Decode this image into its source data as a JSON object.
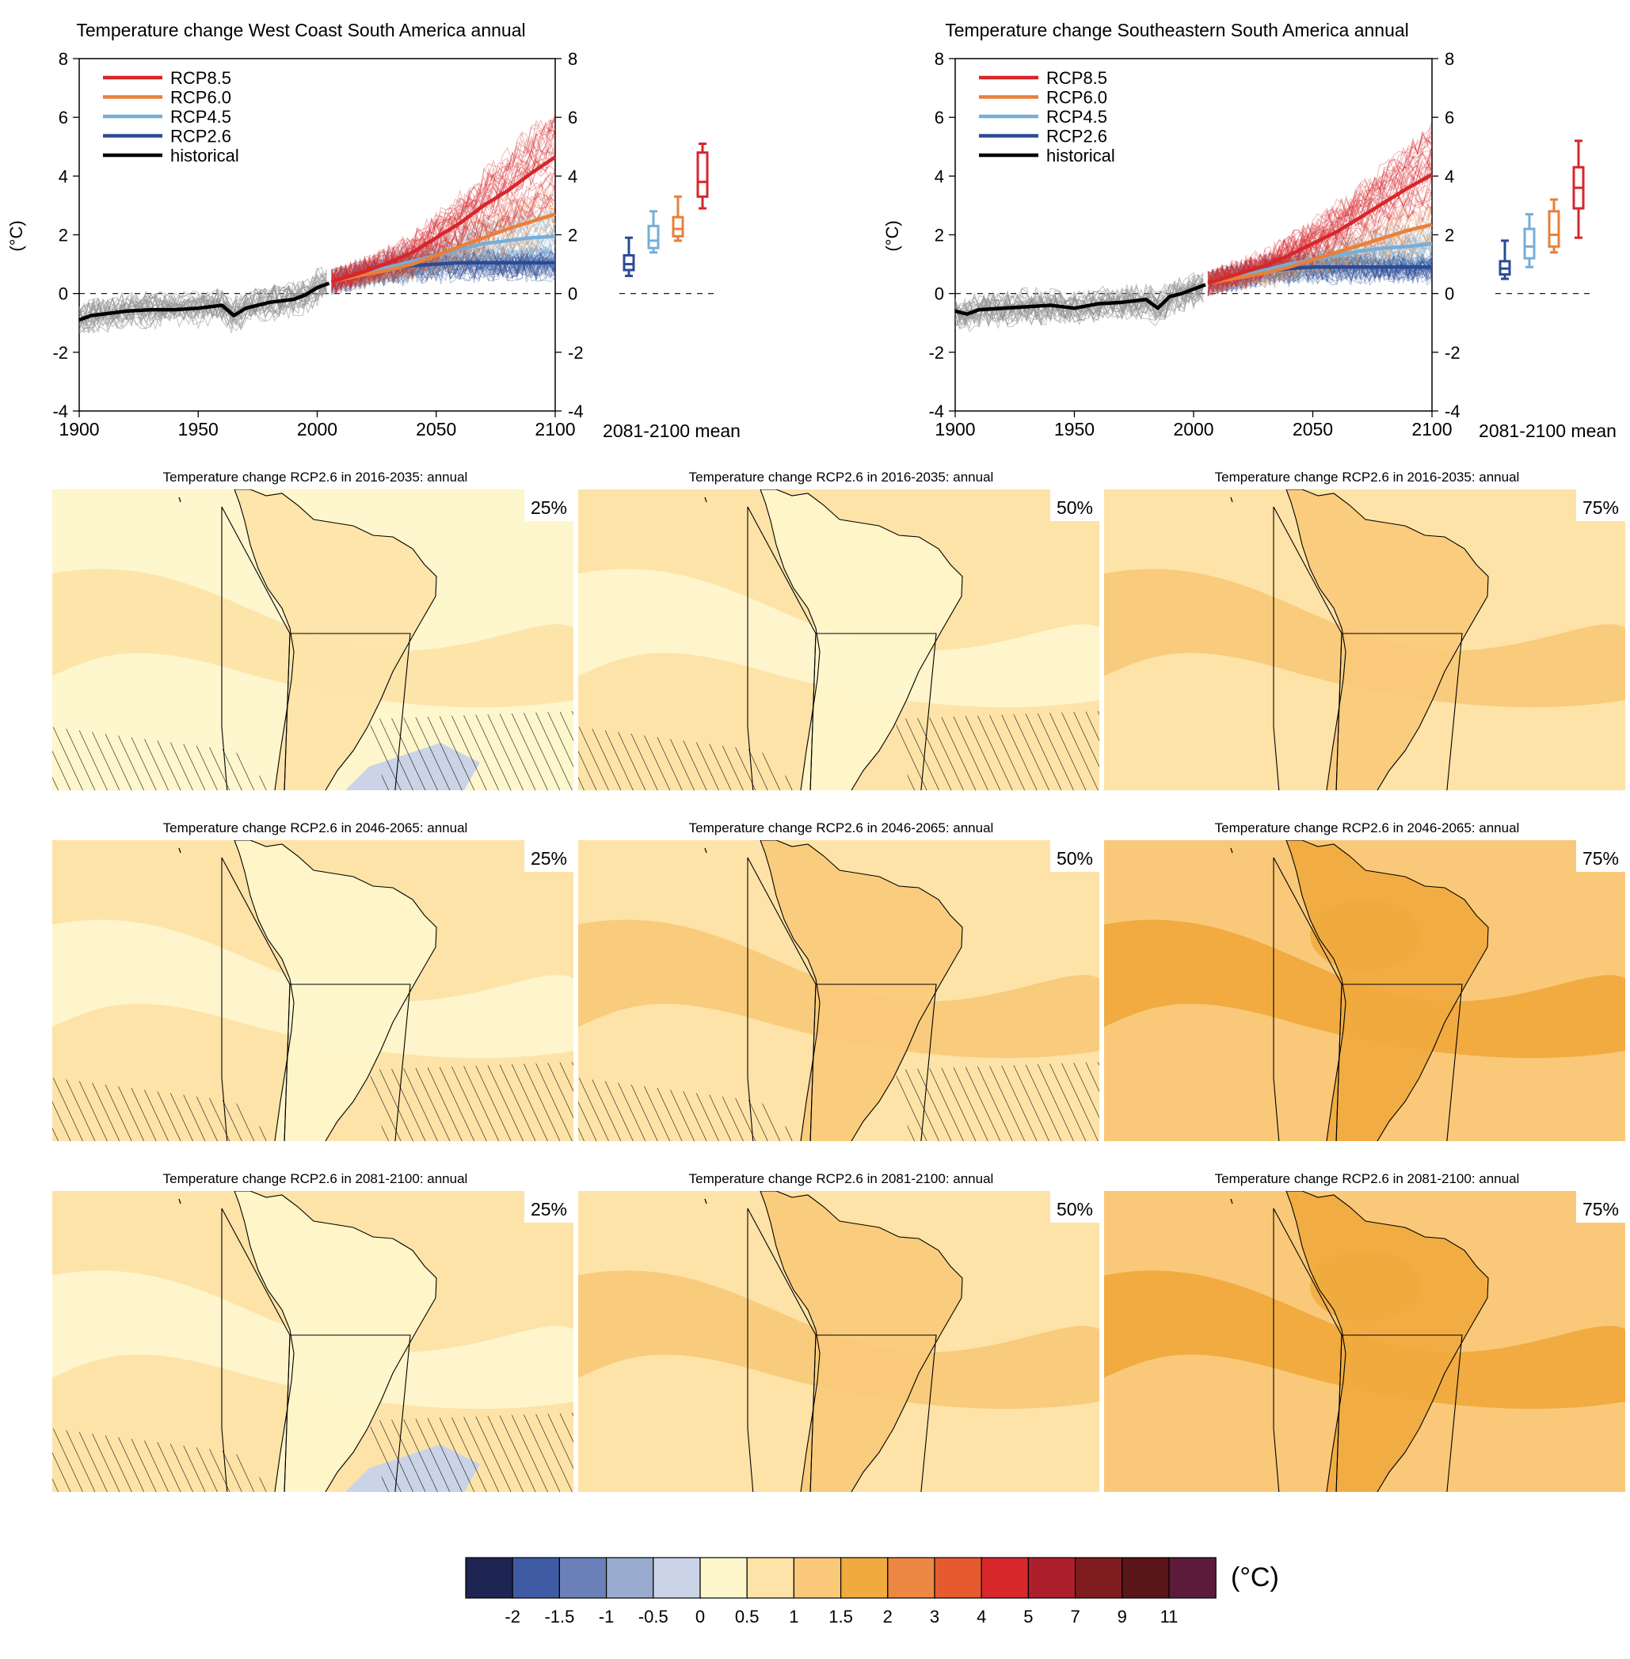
{
  "colors": {
    "rcp85": "#d7262b",
    "rcp60": "#e8803a",
    "rcp45": "#76aed8",
    "rcp26": "#2c4b95",
    "historical": "#000000",
    "ensemble_hist": "#8e8e8e"
  },
  "chart_data": [
    {
      "type": "line",
      "title": "Temperature change West Coast South America annual",
      "ylabel": "(°C)",
      "xlim": [
        1900,
        2100
      ],
      "ylim": [
        -4,
        8
      ],
      "x_ticks": [
        "1900",
        "1950",
        "2000",
        "2050",
        "2100"
      ],
      "y_ticks": [
        "8",
        "6",
        "4",
        "2",
        "0",
        "-2",
        "-4"
      ],
      "y_ticks_right": [
        "8",
        "6",
        "4",
        "2",
        "0",
        "-2",
        "-4"
      ],
      "legend": [
        "RCP8.5",
        "RCP6.0",
        "RCP4.5",
        "RCP2.6",
        "historical"
      ],
      "legend_position": "top-left",
      "series": [
        {
          "name": "historical",
          "x": [
            1900,
            1905,
            1910,
            1920,
            1930,
            1940,
            1950,
            1960,
            1965,
            1970,
            1980,
            1990,
            1995,
            2000,
            2005
          ],
          "y": [
            -0.9,
            -0.75,
            -0.7,
            -0.6,
            -0.55,
            -0.55,
            -0.5,
            -0.4,
            -0.75,
            -0.5,
            -0.3,
            -0.2,
            -0.05,
            0.2,
            0.35
          ]
        },
        {
          "name": "RCP2.6",
          "x": [
            2006,
            2020,
            2030,
            2040,
            2050,
            2060,
            2070,
            2080,
            2090,
            2100
          ],
          "y": [
            0.4,
            0.7,
            0.85,
            0.95,
            1.0,
            1.05,
            1.05,
            1.05,
            1.05,
            1.05
          ]
        },
        {
          "name": "RCP4.5",
          "x": [
            2006,
            2020,
            2030,
            2040,
            2050,
            2060,
            2070,
            2080,
            2090,
            2100
          ],
          "y": [
            0.4,
            0.7,
            0.9,
            1.1,
            1.3,
            1.5,
            1.7,
            1.8,
            1.9,
            1.95
          ]
        },
        {
          "name": "RCP6.0",
          "x": [
            2006,
            2020,
            2030,
            2040,
            2050,
            2060,
            2070,
            2080,
            2090,
            2100
          ],
          "y": [
            0.4,
            0.65,
            0.8,
            1.0,
            1.3,
            1.6,
            1.9,
            2.2,
            2.45,
            2.7
          ]
        },
        {
          "name": "RCP8.5",
          "x": [
            2006,
            2020,
            2030,
            2040,
            2050,
            2060,
            2070,
            2080,
            2090,
            2100
          ],
          "y": [
            0.4,
            0.75,
            1.05,
            1.4,
            1.9,
            2.4,
            3.0,
            3.5,
            4.1,
            4.65
          ]
        }
      ],
      "box_axis_label": "2081-2100 mean",
      "box_zero_line": "0",
      "boxes": [
        {
          "name": "RCP2.6",
          "min": 0.6,
          "q1": 0.8,
          "median": 1.0,
          "q3": 1.3,
          "max": 1.9
        },
        {
          "name": "RCP4.5",
          "min": 1.4,
          "q1": 1.55,
          "median": 1.8,
          "q3": 2.3,
          "max": 2.8
        },
        {
          "name": "RCP6.0",
          "min": 1.8,
          "q1": 1.95,
          "median": 2.2,
          "q3": 2.6,
          "max": 3.3
        },
        {
          "name": "RCP8.5",
          "min": 2.9,
          "q1": 3.3,
          "median": 3.8,
          "q3": 4.8,
          "max": 5.1
        }
      ]
    },
    {
      "type": "line",
      "title": "Temperature change Southeastern South America annual",
      "ylabel": "(°C)",
      "xlim": [
        1900,
        2100
      ],
      "ylim": [
        -4,
        8
      ],
      "x_ticks": [
        "1900",
        "1950",
        "2000",
        "2050",
        "2100"
      ],
      "y_ticks": [
        "8",
        "6",
        "4",
        "2",
        "0",
        "-2",
        "-4"
      ],
      "y_ticks_right": [
        "8",
        "6",
        "4",
        "2",
        "0",
        "-2",
        "-4"
      ],
      "legend": [
        "RCP8.5",
        "RCP6.0",
        "RCP4.5",
        "RCP2.6",
        "historical"
      ],
      "legend_position": "top-left",
      "series": [
        {
          "name": "historical",
          "x": [
            1900,
            1905,
            1910,
            1920,
            1930,
            1940,
            1950,
            1960,
            1970,
            1980,
            1985,
            1990,
            1995,
            2000,
            2005
          ],
          "y": [
            -0.6,
            -0.7,
            -0.55,
            -0.5,
            -0.45,
            -0.4,
            -0.5,
            -0.35,
            -0.3,
            -0.2,
            -0.5,
            -0.1,
            0.0,
            0.15,
            0.3
          ]
        },
        {
          "name": "RCP2.6",
          "x": [
            2006,
            2020,
            2030,
            2040,
            2050,
            2060,
            2070,
            2080,
            2090,
            2100
          ],
          "y": [
            0.35,
            0.6,
            0.75,
            0.85,
            0.9,
            0.9,
            0.9,
            0.9,
            0.9,
            0.9
          ]
        },
        {
          "name": "RCP4.5",
          "x": [
            2006,
            2020,
            2030,
            2040,
            2050,
            2060,
            2070,
            2080,
            2090,
            2100
          ],
          "y": [
            0.35,
            0.6,
            0.8,
            1.0,
            1.15,
            1.3,
            1.45,
            1.55,
            1.6,
            1.7
          ]
        },
        {
          "name": "RCP6.0",
          "x": [
            2006,
            2020,
            2030,
            2040,
            2050,
            2060,
            2070,
            2080,
            2090,
            2100
          ],
          "y": [
            0.35,
            0.55,
            0.7,
            0.9,
            1.15,
            1.4,
            1.65,
            1.9,
            2.15,
            2.35
          ]
        },
        {
          "name": "RCP8.5",
          "x": [
            2006,
            2020,
            2030,
            2040,
            2050,
            2060,
            2070,
            2080,
            2090,
            2100
          ],
          "y": [
            0.35,
            0.7,
            0.95,
            1.3,
            1.7,
            2.1,
            2.6,
            3.1,
            3.6,
            4.05
          ]
        }
      ],
      "box_axis_label": "2081-2100 mean",
      "box_zero_line": "0",
      "boxes": [
        {
          "name": "RCP2.6",
          "min": 0.5,
          "q1": 0.65,
          "median": 0.85,
          "q3": 1.1,
          "max": 1.8
        },
        {
          "name": "RCP4.5",
          "min": 0.9,
          "q1": 1.2,
          "median": 1.6,
          "q3": 2.2,
          "max": 2.7
        },
        {
          "name": "RCP6.0",
          "min": 1.4,
          "q1": 1.6,
          "median": 2.0,
          "q3": 2.8,
          "max": 3.2
        },
        {
          "name": "RCP8.5",
          "min": 1.9,
          "q1": 2.9,
          "median": 3.6,
          "q3": 4.3,
          "max": 5.2
        }
      ]
    },
    {
      "type": "heatmap",
      "title": "Temperature change RCP2.6 in 2016-2035: annual",
      "panels": [
        {
          "percentile": "25%",
          "dominant_class": "0 to 0.5",
          "secondary_class": "0.5 to 1",
          "hatched": true,
          "negative_area": true
        },
        {
          "percentile": "50%",
          "dominant_class": "0.5 to 1",
          "secondary_class": "0 to 0.5",
          "hatched": true,
          "negative_area": false
        },
        {
          "percentile": "75%",
          "dominant_class": "0.5 to 1",
          "secondary_class": "1 to 1.5",
          "hatched": false,
          "negative_area": false
        }
      ]
    },
    {
      "type": "heatmap",
      "title": "Temperature change RCP2.6 in 2046-2065: annual",
      "panels": [
        {
          "percentile": "25%",
          "dominant_class": "0.5 to 1",
          "secondary_class": "0 to 0.5",
          "hatched": true,
          "negative_area": false
        },
        {
          "percentile": "50%",
          "dominant_class": "0.5 to 1",
          "secondary_class": "1 to 1.5",
          "hatched": true,
          "negative_area": false
        },
        {
          "percentile": "75%",
          "dominant_class": "1 to 1.5",
          "secondary_class": "1.5 to 2",
          "hatched": false,
          "negative_area": false
        }
      ]
    },
    {
      "type": "heatmap",
      "title": "Temperature change RCP2.6 in 2081-2100: annual",
      "panels": [
        {
          "percentile": "25%",
          "dominant_class": "0.5 to 1",
          "secondary_class": "0 to 0.5",
          "hatched": true,
          "negative_area": true
        },
        {
          "percentile": "50%",
          "dominant_class": "0.5 to 1",
          "secondary_class": "1 to 1.5",
          "hatched": false,
          "negative_area": false
        },
        {
          "percentile": "75%",
          "dominant_class": "1 to 1.5",
          "secondary_class": "1.5 to 2",
          "hatched": false,
          "negative_area": false
        }
      ]
    }
  ],
  "colorbar": {
    "unit": "(°C)",
    "labels": [
      "-2",
      "-1.5",
      "-1",
      "-0.5",
      "0",
      "0.5",
      "1",
      "1.5",
      "2",
      "3",
      "4",
      "5",
      "7",
      "9",
      "11"
    ],
    "colors": [
      "#1e2553",
      "#3e5aa2",
      "#6b7fb8",
      "#9aabd0",
      "#cbd4e6",
      "#fef6cd",
      "#fde3a7",
      "#f9c979",
      "#f0aa3d",
      "#ec8844",
      "#e55a2f",
      "#d8282c",
      "#ad1f2b",
      "#7e1c20",
      "#5a1518",
      "#5d1b3c"
    ]
  }
}
